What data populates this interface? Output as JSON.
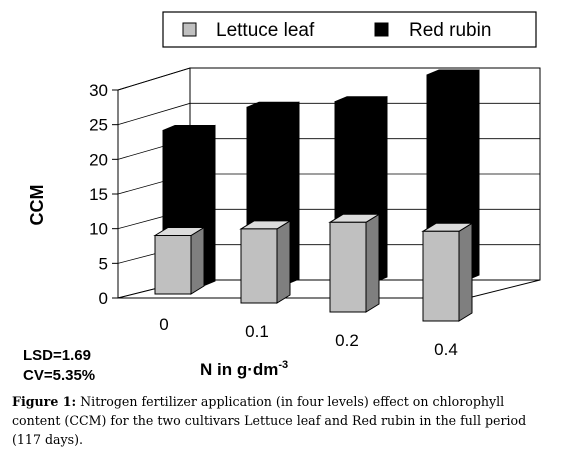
{
  "chart_data": {
    "type": "bar",
    "categories": [
      "0",
      "0.1",
      "0.2",
      "0.4"
    ],
    "series": [
      {
        "name": "Lettuce leaf",
        "values": [
          7.5,
          9.5,
          11.5,
          11.5
        ]
      },
      {
        "name": "Red rubin",
        "values": [
          22,
          25,
          25.5,
          29
        ]
      }
    ],
    "colors": {
      "Lettuce leaf": "#c0c0c0",
      "Red rubin": "#000000"
    },
    "xlabel": "N in g·dm",
    "xlabel_superscript": "-3",
    "ylabel": "CCM",
    "ylim": [
      0,
      30
    ],
    "yticks": [
      "0",
      "5",
      "10",
      "15",
      "20",
      "25",
      "30"
    ],
    "grid": true,
    "legend_position": "top"
  },
  "stats": {
    "lsd": "LSD=1.69",
    "cv": "CV=5.35%"
  },
  "caption": {
    "label": "Figure 1:",
    "text": " Nitrogen fertilizer application (in four levels) effect on chlorophyll content (CCM) for the two cultivars Lettuce leaf and Red rubin in the full period (117 days)."
  }
}
